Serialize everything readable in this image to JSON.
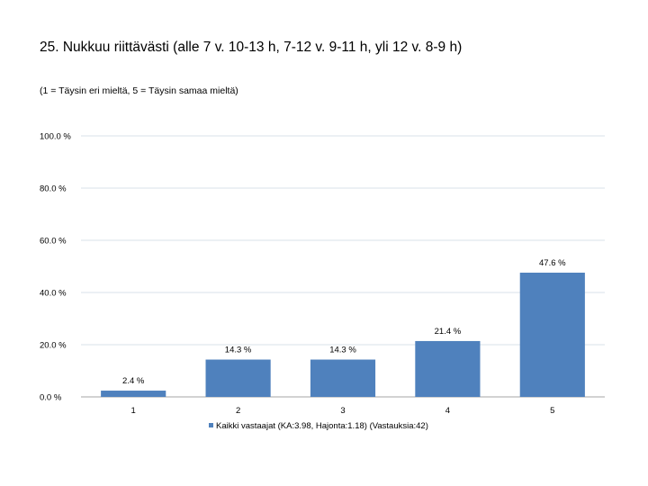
{
  "chart_data": {
    "type": "bar",
    "title": "25. Nukkuu riittävästi (alle 7 v. 10-13 h, 7-12 v. 9-11 h, yli 12 v. 8-9 h)",
    "subtitle": "(1 = Täysin eri mieltä, 5 = Täysin samaa mieltä)",
    "categories": [
      "1",
      "2",
      "3",
      "4",
      "5"
    ],
    "series": [
      {
        "name": "Kaikki vastaajat (KA:3.98, Hajonta:1.18) (Vastauksia:42)",
        "values": [
          2.4,
          14.3,
          14.3,
          21.4,
          47.6
        ],
        "labels": [
          "2.4 %",
          "14.3 %",
          "14.3 %",
          "21.4 %",
          "47.6 %"
        ]
      }
    ],
    "ylim": [
      0,
      100
    ],
    "yticks": [
      0,
      20,
      40,
      60,
      80,
      100
    ],
    "ytick_labels": [
      "0.0 %",
      "20.0 %",
      "40.0 %",
      "60.0 %",
      "80.0 %",
      "100.0 %"
    ],
    "grid": true,
    "legend": "bottom",
    "bar_color": "#4f81bd",
    "grid_color": "#d9e1ea"
  }
}
